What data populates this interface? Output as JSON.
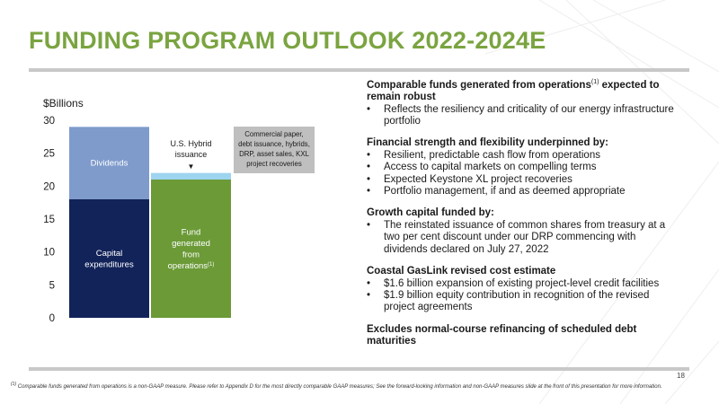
{
  "page": {
    "title": "FUNDING PROGRAM OUTLOOK 2022-2024E",
    "page_number": "18",
    "footnote": "Comparable funds generated from operations is a non-GAAP measure. Please refer to Appendix D for the most directly comparable GAAP measures; See the forward-looking information and non-GAAP measures slide at the front of this presentation for more information.",
    "footnote_marker": "(1)"
  },
  "colors": {
    "title_green": "#7aa440",
    "navy": "#12235a",
    "light_blue": "#7f9bcc",
    "green": "#6b9a37",
    "sky": "#9ed4f0",
    "callout_grey": "#bfbfbf",
    "rule_grey": "#c8c8c8"
  },
  "chart_data": {
    "type": "bar",
    "ylabel": "$Billions",
    "ylim": [
      0,
      30
    ],
    "yticks": [
      "0",
      "5",
      "10",
      "15",
      "20",
      "25",
      "30"
    ],
    "bars": [
      {
        "segments": [
          {
            "label": "Capital expenditures",
            "label_lines": [
              "Capital",
              "expenditures"
            ],
            "value": 18,
            "color": "#12235a"
          },
          {
            "label": "Dividends",
            "label_lines": [
              "Dividends"
            ],
            "value": 11,
            "color": "#7f9bcc"
          }
        ]
      },
      {
        "segments": [
          {
            "label": "Fund generated from operations(1)",
            "label_lines": [
              "Fund",
              "generated",
              "from",
              "operations"
            ],
            "label_suffix": "(1)",
            "value": 21,
            "color": "#6b9a37"
          },
          {
            "label": "U.S. Hybrid issuance",
            "value": 1,
            "color": "#9ed4f0"
          }
        ]
      }
    ],
    "annotations": [
      {
        "text_lines": [
          "U.S. Hybrid",
          "issuance"
        ],
        "arrow": "▼"
      }
    ],
    "callout": {
      "text_lines": [
        "Commercial paper,",
        "debt issuance, hybrids,",
        "DRP, asset sales, KXL",
        "project recoveries"
      ]
    }
  },
  "sections": [
    {
      "heading_pre": "Comparable funds generated from operations",
      "heading_sup": "(1)",
      "heading_post": " expected to remain robust",
      "bullets": [
        "Reflects the resiliency and criticality of our energy infrastructure portfolio"
      ]
    },
    {
      "heading": "Financial strength and flexibility underpinned by:",
      "bullets": [
        "Resilient, predictable cash flow from operations",
        "Access to capital markets on compelling terms",
        "Expected Keystone XL project recoveries",
        "Portfolio management, if and as deemed appropriate"
      ]
    },
    {
      "heading": "Growth capital funded by:",
      "bullets": [
        "The reinstated issuance of common shares from treasury at a two per cent discount under our DRP commencing with dividends declared on July 27, 2022"
      ]
    },
    {
      "heading": "Coastal GasLink revised cost estimate",
      "bullets": [
        "$1.6 billion expansion of existing project-level credit facilities",
        "$1.9 billion equity contribution in recognition of the revised project agreements"
      ]
    }
  ],
  "closing": "Excludes normal-course refinancing of scheduled debt maturities",
  "bullet_char": "•"
}
